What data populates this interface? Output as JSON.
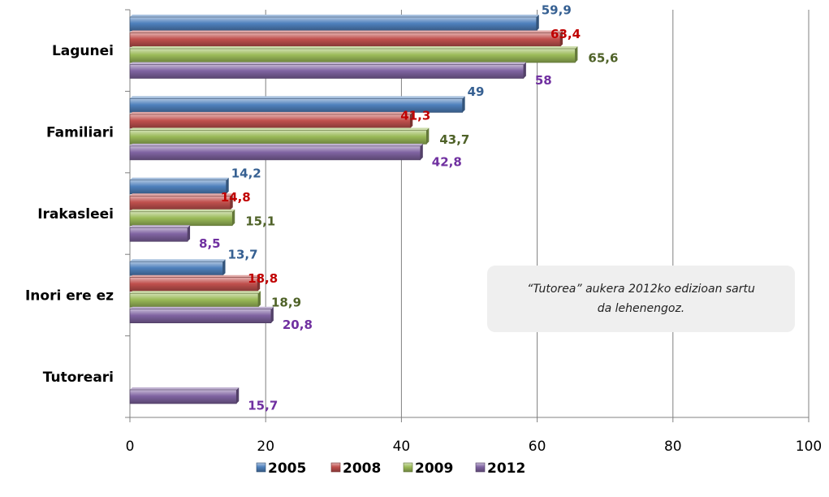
{
  "chart_data": {
    "type": "bar",
    "orientation": "horizontal",
    "categories": [
      "Lagunei",
      "Familiari",
      "Irakasleei",
      "Inori ere ez",
      "Tutoreari"
    ],
    "series": [
      {
        "name": "2005",
        "color": "#4F81BD",
        "label_color": "#366092",
        "values": [
          59.9,
          49,
          14.2,
          13.7,
          null
        ],
        "labels": [
          "59,9",
          "49",
          "14,2",
          "13,7",
          ""
        ]
      },
      {
        "name": "2008",
        "color": "#C0504D",
        "label_color": "#C00000",
        "values": [
          63.4,
          41.3,
          14.8,
          18.8,
          null
        ],
        "labels": [
          "63,4",
          "41,3",
          "14,8",
          "18,8",
          ""
        ]
      },
      {
        "name": "2009",
        "color": "#9BBB59",
        "label_color": "#4F6228",
        "values": [
          65.6,
          43.7,
          15.1,
          18.9,
          null
        ],
        "labels": [
          "65,6",
          "43,7",
          "15,1",
          "18,9",
          ""
        ]
      },
      {
        "name": "2012",
        "color": "#8064A2",
        "label_color": "#7030A0",
        "values": [
          58,
          42.8,
          8.5,
          20.8,
          15.7
        ],
        "labels": [
          "58",
          "42,8",
          "8,5",
          "20,8",
          "15,7"
        ]
      }
    ],
    "xlim": [
      0,
      100
    ],
    "xticks": [
      "0",
      "20",
      "40",
      "60",
      "80",
      "100"
    ],
    "grid": true,
    "legend_position": "bottom",
    "annotation": {
      "line1": "“Tutorea” aukera 2012ko edizioan sartu",
      "line2": "da lehenengoz."
    }
  }
}
